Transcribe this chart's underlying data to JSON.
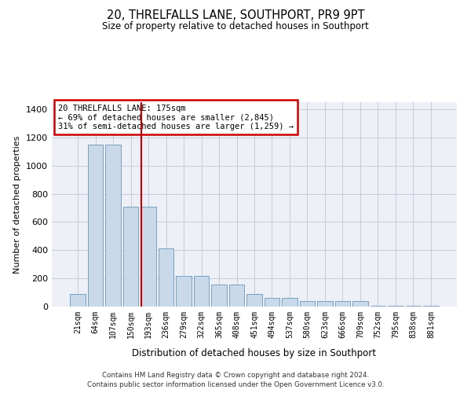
{
  "title": "20, THRELFALLS LANE, SOUTHPORT, PR9 9PT",
  "subtitle": "Size of property relative to detached houses in Southport",
  "xlabel": "Distribution of detached houses by size in Southport",
  "ylabel": "Number of detached properties",
  "footer1": "Contains HM Land Registry data © Crown copyright and database right 2024.",
  "footer2": "Contains public sector information licensed under the Open Government Licence v3.0.",
  "bar_labels": [
    "21sqm",
    "64sqm",
    "107sqm",
    "150sqm",
    "193sqm",
    "236sqm",
    "279sqm",
    "322sqm",
    "365sqm",
    "408sqm",
    "451sqm",
    "494sqm",
    "537sqm",
    "580sqm",
    "623sqm",
    "666sqm",
    "709sqm",
    "752sqm",
    "795sqm",
    "838sqm",
    "881sqm"
  ],
  "bar_values": [
    90,
    1150,
    1150,
    710,
    710,
    415,
    215,
    215,
    155,
    155,
    88,
    60,
    60,
    38,
    38,
    38,
    38,
    8,
    8,
    8,
    8
  ],
  "bar_color": "#c9d9ea",
  "bar_edge_color": "#7aa0c0",
  "grid_color": "#c8ccd8",
  "bg_color": "#edf1f7",
  "annotation_box_edgecolor": "#cc0000",
  "annotation_text_line1": "20 THRELFALLS LANE: 175sqm",
  "annotation_text_line2": "← 69% of detached houses are smaller (2,845)",
  "annotation_text_line3": "31% of semi-detached houses are larger (1,259) →",
  "vline_color": "#cc0000",
  "vline_x": 3.6,
  "ylim": [
    0,
    1450
  ],
  "yticks": [
    0,
    200,
    400,
    600,
    800,
    1000,
    1200,
    1400
  ],
  "fig_width": 6.0,
  "fig_height": 5.0,
  "dpi": 100
}
